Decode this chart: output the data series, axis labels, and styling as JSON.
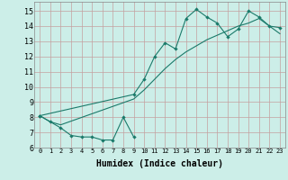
{
  "xlabel": "Humidex (Indice chaleur)",
  "bg_color": "#cceee8",
  "grid_color": "#c4a0a0",
  "line_color": "#1a7a6a",
  "xlim": [
    -0.5,
    23.5
  ],
  "ylim": [
    6.0,
    15.6
  ],
  "xticks": [
    0,
    1,
    2,
    3,
    4,
    5,
    6,
    7,
    8,
    9,
    10,
    11,
    12,
    13,
    14,
    15,
    16,
    17,
    18,
    19,
    20,
    21,
    22,
    23
  ],
  "yticks": [
    6,
    7,
    8,
    9,
    10,
    11,
    12,
    13,
    14,
    15
  ],
  "line1_x": [
    0,
    1,
    2,
    3,
    4,
    5,
    6,
    7,
    8,
    9
  ],
  "line1_y": [
    8.1,
    7.7,
    7.3,
    6.8,
    6.7,
    6.7,
    6.5,
    6.5,
    8.0,
    6.7
  ],
  "line2_x": [
    0,
    9,
    10,
    11,
    12,
    13,
    14,
    15,
    16,
    17,
    18,
    19,
    20,
    21,
    22,
    23
  ],
  "line2_y": [
    8.1,
    9.5,
    10.5,
    12.0,
    12.9,
    12.5,
    14.5,
    15.1,
    14.6,
    14.2,
    13.3,
    13.8,
    15.0,
    14.6,
    14.0,
    13.9
  ],
  "line3_x": [
    0,
    1,
    2,
    9,
    10,
    11,
    12,
    13,
    14,
    15,
    16,
    17,
    18,
    19,
    20,
    21,
    23
  ],
  "line3_y": [
    8.1,
    7.7,
    7.5,
    9.2,
    9.8,
    10.5,
    11.2,
    11.8,
    12.3,
    12.7,
    13.1,
    13.4,
    13.7,
    14.0,
    14.2,
    14.5,
    13.5
  ]
}
